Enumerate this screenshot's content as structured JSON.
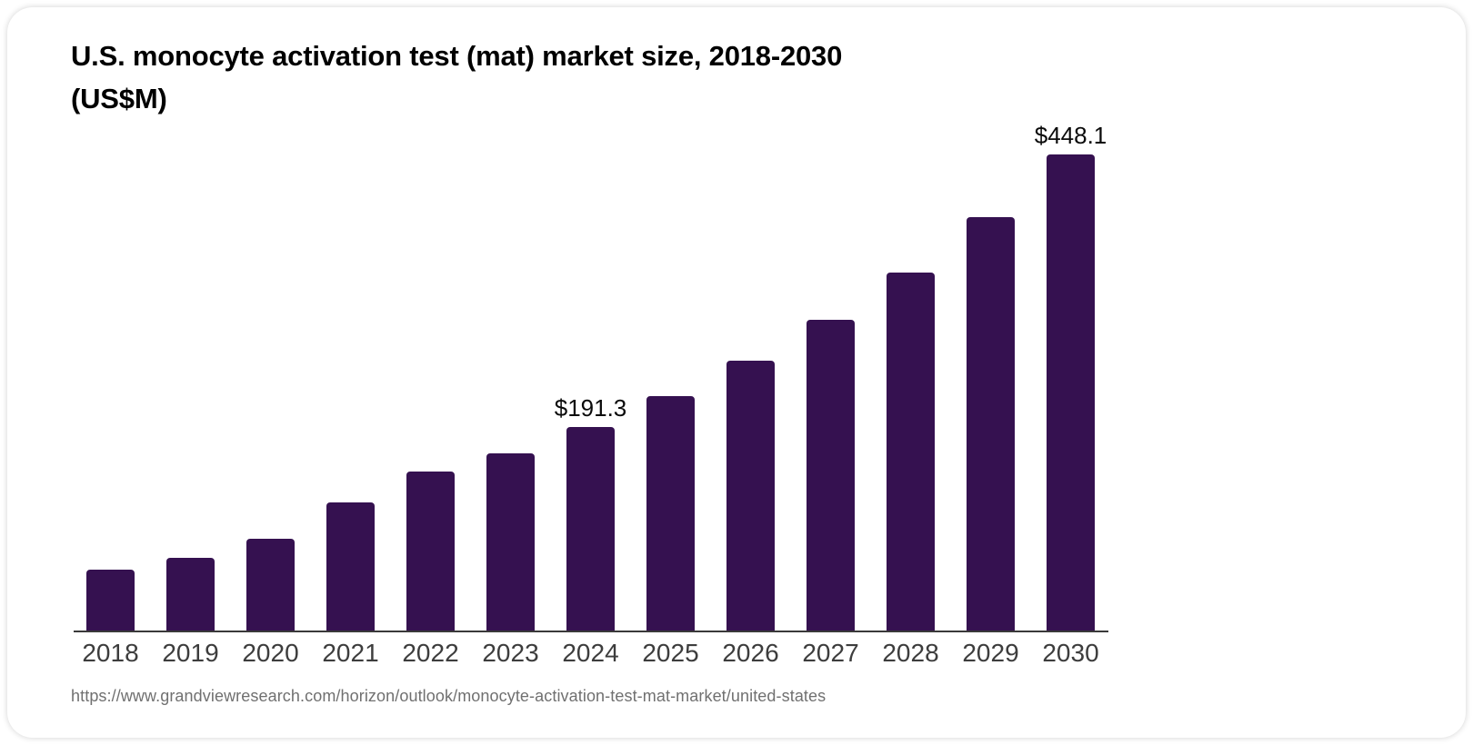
{
  "header": {
    "title_line1": "U.S. monocyte activation test (mat) market size, 2018-2030",
    "title_line2": "(US$M)"
  },
  "footer": {
    "source_url": "https://www.grandviewresearch.com/horizon/outlook/monocyte-activation-test-mat-market/united-states"
  },
  "chart_data": {
    "type": "bar",
    "title": "U.S. monocyte activation test (mat) market size, 2018-2030 (US$M)",
    "categories": [
      "2018",
      "2019",
      "2020",
      "2021",
      "2022",
      "2023",
      "2024",
      "2025",
      "2026",
      "2027",
      "2028",
      "2029",
      "2030"
    ],
    "values": [
      57.3,
      68.5,
      86.4,
      120.4,
      149.5,
      166.9,
      191.3,
      220.5,
      254.1,
      292.8,
      337.4,
      388.9,
      448.1
    ],
    "value_labels": [
      "",
      "",
      "",
      "",
      "",
      "",
      "$191.3",
      "",
      "",
      "",
      "",
      "",
      "$448.1"
    ],
    "xlabel": "",
    "ylabel": "",
    "ylim": [
      0,
      460
    ],
    "grid": false,
    "legend": "none",
    "bar_color": "#351150",
    "axis_color": "#3a3a3a",
    "tick_label_color": "#3d3d3d",
    "value_label_color": "#0b0b0b"
  }
}
